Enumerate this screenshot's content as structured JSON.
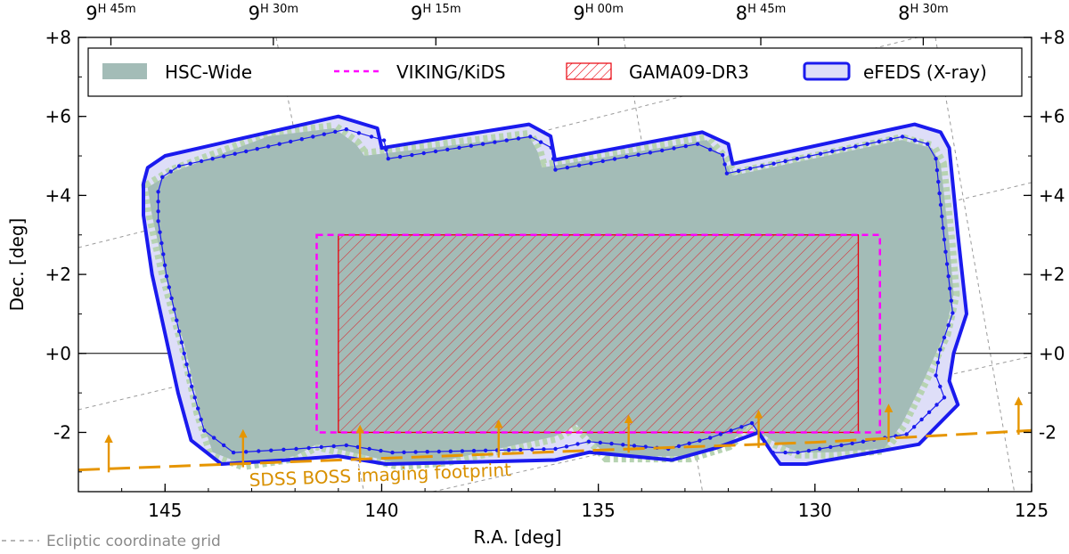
{
  "chart_data": {
    "type": "area",
    "xlabel": "R.A. [deg]",
    "ylabel": "Dec. [deg]",
    "xlim": [
      147,
      125
    ],
    "ylim": [
      -3.5,
      8
    ],
    "x_ticks": [
      {
        "value": 145,
        "label": "145"
      },
      {
        "value": 140,
        "label": "140"
      },
      {
        "value": 135,
        "label": "135"
      },
      {
        "value": 130,
        "label": "130"
      },
      {
        "value": 125,
        "label": "125"
      }
    ],
    "y_ticks": [
      {
        "value": 8,
        "label": "+8"
      },
      {
        "value": 6,
        "label": "+6"
      },
      {
        "value": 4,
        "label": "+4"
      },
      {
        "value": 2,
        "label": "+2"
      },
      {
        "value": 0,
        "label": "+0"
      },
      {
        "value": -2,
        "label": "-2"
      }
    ],
    "top_ticks": [
      {
        "value": 146.25,
        "hours": "9",
        "sup": "H 45m"
      },
      {
        "value": 142.5,
        "hours": "9",
        "sup": "H 30m"
      },
      {
        "value": 138.75,
        "hours": "9",
        "sup": "H 15m"
      },
      {
        "value": 135.0,
        "hours": "9",
        "sup": "H 00m"
      },
      {
        "value": 131.25,
        "hours": "8",
        "sup": "H 45m"
      },
      {
        "value": 127.5,
        "hours": "8",
        "sup": "H 30m"
      }
    ],
    "legend": {
      "placement": "top",
      "entries": [
        {
          "label": "HSC-Wide",
          "style": "patch"
        },
        {
          "label": "VIKING/KiDS",
          "style": "dashed-line"
        },
        {
          "label": "GAMA09-DR3",
          "style": "hatched"
        },
        {
          "label": "eFEDS (X-ray)",
          "style": "outlined-patch"
        }
      ]
    },
    "series": [
      {
        "name": "HSC-Wide",
        "polygon": [
          [
            144.8,
            4.6
          ],
          [
            142.6,
            5.5
          ],
          [
            141.1,
            5.7
          ],
          [
            140.6,
            5.3
          ],
          [
            140.4,
            5.0
          ],
          [
            136.6,
            5.5
          ],
          [
            136.4,
            5.1
          ],
          [
            136.3,
            4.7
          ],
          [
            132.5,
            5.4
          ],
          [
            132.1,
            4.9
          ],
          [
            131.9,
            4.5
          ],
          [
            128.0,
            5.4
          ],
          [
            127.3,
            5.2
          ],
          [
            127.1,
            4.8
          ],
          [
            126.9,
            2.8
          ],
          [
            126.8,
            1.5
          ],
          [
            127.0,
            0.5
          ],
          [
            127.5,
            -0.7
          ],
          [
            128.0,
            -1.8
          ],
          [
            128.4,
            -2.4
          ],
          [
            129.6,
            -2.5
          ],
          [
            130.4,
            -2.5
          ],
          [
            131.0,
            -2.2
          ],
          [
            131.5,
            -1.8
          ],
          [
            132.0,
            -2.3
          ],
          [
            132.9,
            -2.6
          ],
          [
            134.8,
            -2.6
          ],
          [
            135.5,
            -1.8
          ],
          [
            136.0,
            -2.1
          ],
          [
            138.5,
            -2.7
          ],
          [
            139.6,
            -2.8
          ],
          [
            140.3,
            -2.6
          ],
          [
            141.5,
            -2.3
          ],
          [
            142.0,
            -2.6
          ],
          [
            143.2,
            -2.8
          ],
          [
            143.9,
            -2.5
          ],
          [
            144.2,
            -1.5
          ],
          [
            144.5,
            0.0
          ],
          [
            145.0,
            2.0
          ],
          [
            145.3,
            3.5
          ],
          [
            145.4,
            4.2
          ]
        ],
        "color": "#a3bcb7",
        "fringe_color": "#b7d3b2"
      },
      {
        "name": "eFEDS (X-ray)",
        "polygon": [
          [
            145.4,
            4.7
          ],
          [
            145.0,
            5.0
          ],
          [
            141.0,
            6.0
          ],
          [
            140.1,
            5.7
          ],
          [
            140.0,
            5.2
          ],
          [
            136.6,
            5.8
          ],
          [
            136.1,
            5.5
          ],
          [
            136.0,
            4.9
          ],
          [
            132.6,
            5.6
          ],
          [
            132.0,
            5.3
          ],
          [
            131.9,
            4.8
          ],
          [
            127.7,
            5.8
          ],
          [
            127.1,
            5.6
          ],
          [
            126.9,
            5.2
          ],
          [
            126.7,
            3.0
          ],
          [
            126.5,
            1.0
          ],
          [
            126.8,
            0.0
          ],
          [
            126.9,
            -0.7
          ],
          [
            126.7,
            -1.3
          ],
          [
            127.6,
            -2.3
          ],
          [
            130.2,
            -2.8
          ],
          [
            130.8,
            -2.8
          ],
          [
            131.0,
            -2.5
          ],
          [
            131.3,
            -2.0
          ],
          [
            132.3,
            -2.4
          ],
          [
            133.3,
            -2.7
          ],
          [
            135.2,
            -2.5
          ],
          [
            136.0,
            -2.7
          ],
          [
            139.9,
            -2.8
          ],
          [
            141.0,
            -2.6
          ],
          [
            142.2,
            -2.7
          ],
          [
            143.7,
            -2.8
          ],
          [
            144.4,
            -2.2
          ],
          [
            144.7,
            -1.0
          ],
          [
            145.0,
            0.5
          ],
          [
            145.3,
            2.0
          ],
          [
            145.5,
            3.5
          ],
          [
            145.5,
            4.3
          ]
        ],
        "color": "#1a1aee",
        "fill": "#dedef8"
      },
      {
        "name": "VIKING/KiDS",
        "ra_range": [
          128.5,
          141.5
        ],
        "dec_range": [
          -2.0,
          3.0
        ],
        "color": "#ff00ff"
      },
      {
        "name": "GAMA09-DR3",
        "ra_range": [
          129.0,
          141.0
        ],
        "dec_range": [
          -2.0,
          3.0
        ],
        "color": "#e8000b"
      },
      {
        "name": "SDSS BOSS imaging footprint",
        "boundary": [
          [
            147.0,
            -2.95
          ],
          [
            141.0,
            -2.7
          ],
          [
            135.0,
            -2.45
          ],
          [
            130.0,
            -2.25
          ],
          [
            125.0,
            -1.95
          ]
        ],
        "arrows_at_ra": [
          146.3,
          143.2,
          140.5,
          137.3,
          134.3,
          131.3,
          128.3,
          125.3
        ],
        "color": "#e69500"
      }
    ],
    "annotations": [
      {
        "text": "SDSS BOSS imaging footprint",
        "color": "#d89000"
      },
      {
        "text": "Ecliptic coordinate grid",
        "style": "dashed-line",
        "color": "#8a8a8a"
      }
    ],
    "grid": false
  }
}
